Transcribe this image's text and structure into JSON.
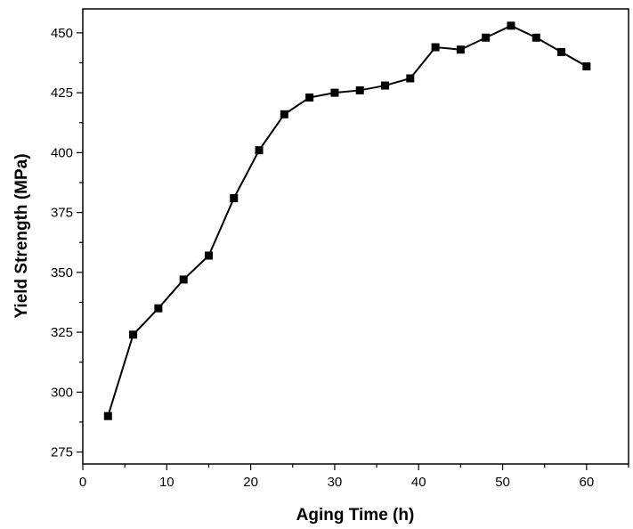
{
  "chart_data": {
    "type": "line",
    "title": "",
    "xlabel": "Aging Time (h)",
    "ylabel": "Yield Strength (MPa)",
    "xlim": [
      0,
      65
    ],
    "ylim": [
      270,
      460
    ],
    "x_ticks": [
      0,
      10,
      20,
      30,
      40,
      50,
      60
    ],
    "y_ticks": [
      275,
      300,
      325,
      350,
      375,
      400,
      425,
      450
    ],
    "grid": false,
    "legend": "none",
    "marker": "square",
    "line_color": "#000000",
    "series": [
      {
        "x": [
          3,
          6,
          9,
          12,
          15,
          18,
          21,
          24,
          27,
          30,
          33,
          36,
          39,
          42,
          45,
          48,
          51,
          54,
          57,
          60
        ],
        "y": [
          290,
          324,
          335,
          347,
          357,
          381,
          401,
          416,
          423,
          425,
          426,
          428,
          431,
          444,
          443,
          448,
          453,
          448,
          442,
          436
        ]
      }
    ]
  }
}
